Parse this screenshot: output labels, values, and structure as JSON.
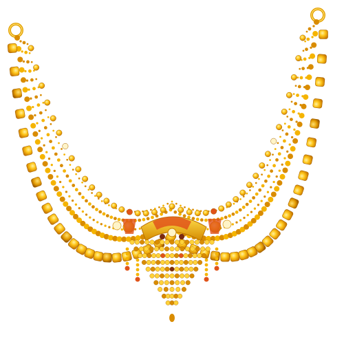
{
  "image": {
    "subject": "gold necklace",
    "background_color": "#ffffff"
  },
  "colors": {
    "gold_light": "#ffd23a",
    "gold": "#f5b400",
    "gold_deep": "#d98c00",
    "gold_shadow": "#a86400",
    "enamel_red": "#e0531a",
    "enamel_dark": "#7a2a10",
    "white_gold": "#fff4c8"
  }
}
